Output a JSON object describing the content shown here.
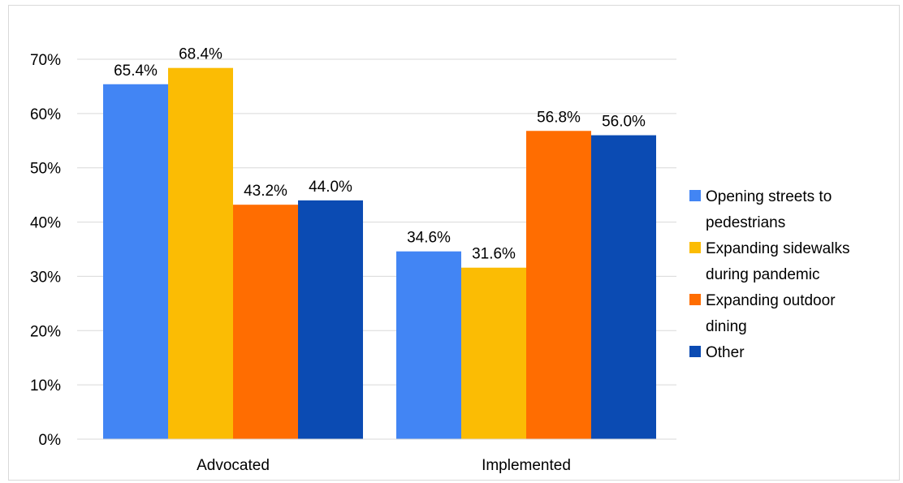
{
  "chart_data": {
    "type": "bar",
    "categories": [
      "Advocated",
      "Implemented"
    ],
    "series": [
      {
        "name": "Opening streets to pedestrians",
        "legend_lines": [
          "Opening streets to",
          "pedestrians"
        ],
        "values": [
          65.4,
          34.6
        ],
        "labels": [
          "65.4%",
          "34.6%"
        ],
        "color": "#4285F4"
      },
      {
        "name": "Expanding sidewalks during pandemic",
        "legend_lines": [
          "Expanding sidewalks",
          "during pandemic"
        ],
        "values": [
          68.4,
          31.6
        ],
        "labels": [
          "68.4%",
          "31.6%"
        ],
        "color": "#FBBC04"
      },
      {
        "name": "Expanding outdoor dining",
        "legend_lines": [
          "Expanding outdoor",
          "dining"
        ],
        "values": [
          43.2,
          56.8
        ],
        "labels": [
          "43.2%",
          "56.8%"
        ],
        "color": "#FF6D01"
      },
      {
        "name": "Other",
        "legend_lines": [
          "Other"
        ],
        "values": [
          44.0,
          56.0
        ],
        "labels": [
          "44.0%",
          "56.0%"
        ],
        "color": "#0B4BB3"
      }
    ],
    "yticks": [
      "0%",
      "10%",
      "20%",
      "30%",
      "40%",
      "50%",
      "60%",
      "70%"
    ],
    "ylim": [
      0,
      70
    ],
    "grid": true,
    "legend_position": "right",
    "title": "",
    "xlabel": "",
    "ylabel": ""
  }
}
